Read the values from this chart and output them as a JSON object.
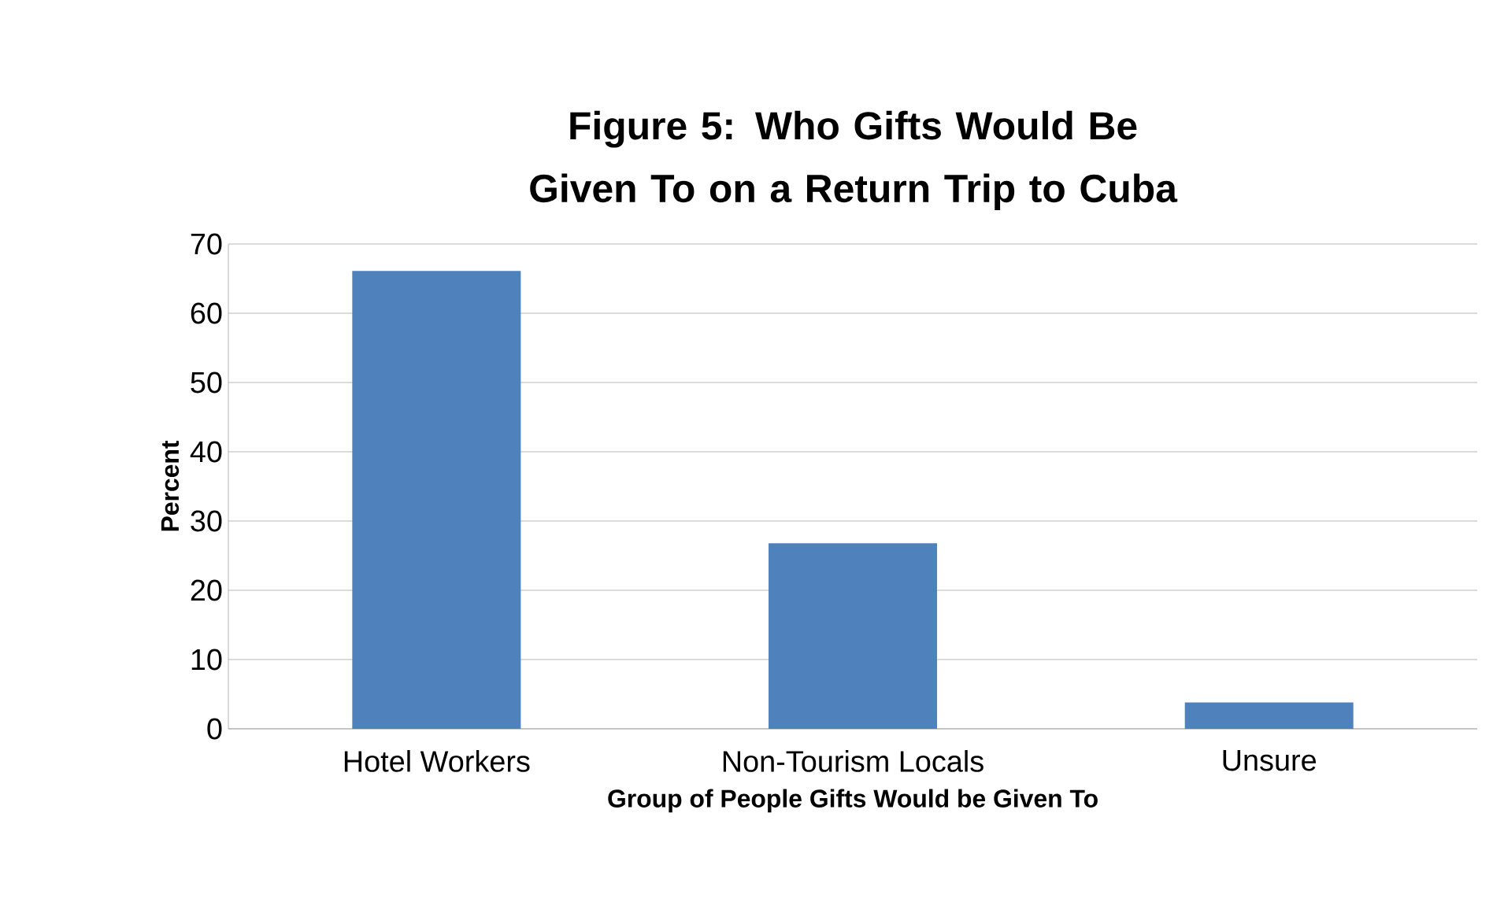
{
  "chart_data": {
    "type": "bar",
    "title": "Figure 5: Who Gifts Would Be Given To on a Return Trip to Cuba",
    "xlabel": "Group of People Gifts Would be Given To",
    "ylabel": "Percent",
    "categories": [
      "Hotel Workers",
      "Non-Tourism Locals",
      "Unsure"
    ],
    "values": [
      66.1,
      26.8,
      3.8
    ],
    "color": "#4f81bd",
    "ylim": [
      0,
      70
    ],
    "yticks": [
      0,
      10,
      20,
      30,
      40,
      50,
      60,
      70
    ],
    "grid": "y"
  }
}
